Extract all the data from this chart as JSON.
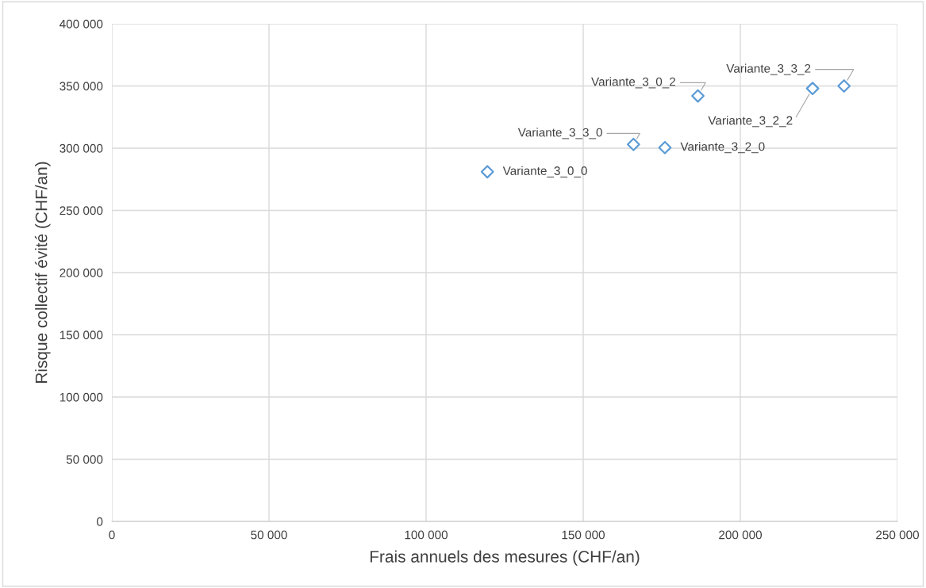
{
  "chart_data": {
    "type": "scatter",
    "xlabel": "Frais annuels des mesures (CHF/an)",
    "ylabel": "Risque collectif évité (CHF/an)",
    "series": [
      {
        "color": "#5b9bd5",
        "x": [
          119500,
          166000,
          176000,
          186500,
          223000,
          233000
        ],
        "values": [
          281000,
          303000,
          300500,
          342000,
          348000,
          350000
        ]
      }
    ],
    "annotations": [
      {
        "text": "Variante_3_0_0",
        "x": 119500,
        "y": 281000
      },
      {
        "text": "Variante_3_3_0",
        "x": 166000,
        "y": 303000
      },
      {
        "text": "Variante_3_2_0",
        "x": 176000,
        "y": 300500
      },
      {
        "text": "Variante_3_0_2",
        "x": 186500,
        "y": 342000
      },
      {
        "text": "Variante_3_2_2",
        "x": 223000,
        "y": 348000
      },
      {
        "text": "Variante_3_3_2",
        "x": 233000,
        "y": 350000
      }
    ],
    "xlim": [
      0,
      250000
    ],
    "xticks": [
      0,
      {
        "value": 50000,
        "label": "50 000"
      },
      {
        "value": 100000,
        "label": "100 000"
      },
      {
        "value": 150000,
        "label": "150 000"
      },
      {
        "value": 200000,
        "label": "200 000"
      },
      {
        "value": 250000,
        "label": "250 000"
      }
    ],
    "ylim": [
      0,
      400000
    ],
    "yticks": [
      0,
      {
        "value": 50000,
        "label": "50 000"
      },
      {
        "value": 100000,
        "label": "100 000"
      },
      {
        "value": 150000,
        "label": "150 000"
      },
      {
        "value": 200000,
        "label": "200 000"
      },
      {
        "value": 250000,
        "label": "250 000"
      },
      {
        "value": 300000,
        "label": "300 000"
      },
      {
        "value": 350000,
        "label": "350 000"
      },
      {
        "value": 400000,
        "label": "400 000"
      }
    ],
    "grid": true,
    "marker": "diamond"
  }
}
